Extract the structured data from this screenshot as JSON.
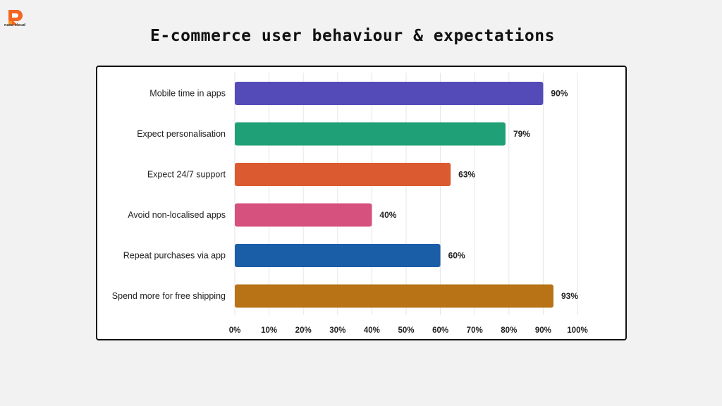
{
  "header": {
    "title": "E-commerce user behaviour & expectations",
    "logo_text": "nasa cloud",
    "logo_color": "#f26522"
  },
  "chart_data": {
    "type": "bar",
    "orientation": "horizontal",
    "categories": [
      "Mobile time in apps",
      "Expect personalisation",
      "Expect 24/7 support",
      "Avoid non-localised apps",
      "Repeat purchases via app",
      "Spend more for free shipping"
    ],
    "values": [
      90,
      79,
      63,
      40,
      60,
      93
    ],
    "value_labels": [
      "90%",
      "79%",
      "63%",
      "40%",
      "60%",
      "93%"
    ],
    "colors": [
      "#544bb8",
      "#20a077",
      "#dc5a30",
      "#d6517d",
      "#1b5ea8",
      "#b87317"
    ],
    "xlim": [
      0,
      100
    ],
    "x_ticks": [
      0,
      10,
      20,
      30,
      40,
      50,
      60,
      70,
      80,
      90,
      100
    ],
    "x_tick_labels": [
      "0%",
      "10%",
      "20%",
      "30%",
      "40%",
      "50%",
      "60%",
      "70%",
      "80%",
      "90%",
      "100%"
    ],
    "grid": true,
    "legend": "none"
  }
}
